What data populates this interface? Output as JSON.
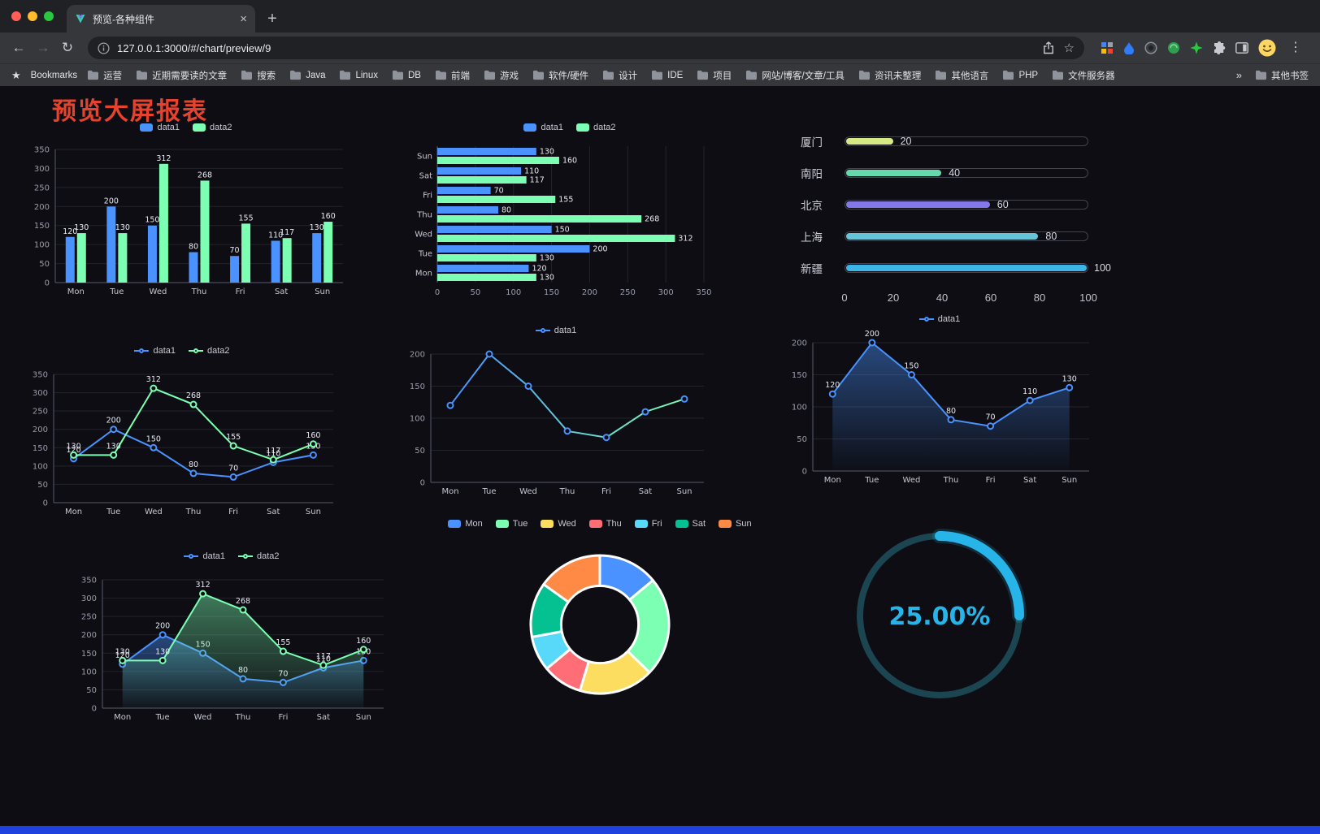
{
  "browser": {
    "tab_title": "预览-各种组件",
    "url": "127.0.0.1:3000/#/chart/preview/9",
    "bookmarks_label": "Bookmarks",
    "bookmarks": [
      "运营",
      "近期需要读的文章",
      "搜索",
      "Java",
      "Linux",
      "DB",
      "前端",
      "游戏",
      "软件/硬件",
      "设计",
      "IDE",
      "项目",
      "网站/博客/文章/工具",
      "资讯未整理",
      "其他语言",
      "PHP",
      "文件服务器"
    ],
    "overflow": "»",
    "other_bookmarks": "其他书签"
  },
  "page": {
    "title": "预览大屏报表",
    "title_color": "#e5432e",
    "background": "#0d0d13",
    "footer_color": "#1f41e0"
  },
  "chart_data": [
    {
      "id": "bar1",
      "type": "bar",
      "categories": [
        "Mon",
        "Tue",
        "Wed",
        "Thu",
        "Fri",
        "Sat",
        "Sun"
      ],
      "series": [
        {
          "name": "data1",
          "color": "#4992ff",
          "values": [
            120,
            200,
            150,
            80,
            70,
            110,
            130
          ]
        },
        {
          "name": "data2",
          "color": "#7cffb2",
          "values": [
            130,
            130,
            312,
            268,
            155,
            117,
            160
          ]
        }
      ],
      "ylim": [
        0,
        350
      ],
      "tick": 50,
      "legend_position": "top",
      "grid": true
    },
    {
      "id": "hbar1",
      "type": "hbar",
      "categories": [
        "Mon",
        "Tue",
        "Wed",
        "Thu",
        "Fri",
        "Sat",
        "Sun"
      ],
      "series": [
        {
          "name": "data1",
          "color": "#4992ff",
          "values": [
            120,
            200,
            150,
            80,
            70,
            110,
            130
          ]
        },
        {
          "name": "data2",
          "color": "#7cffb2",
          "values": [
            130,
            130,
            312,
            268,
            155,
            117,
            160
          ]
        }
      ],
      "xlim": [
        0,
        350
      ],
      "tick": 50,
      "legend_position": "top",
      "grid": true
    },
    {
      "id": "prog1",
      "type": "progress",
      "max": 100,
      "axis": [
        0,
        20,
        40,
        60,
        80,
        100
      ],
      "rows": [
        {
          "label": "厦门",
          "value": 20,
          "color": "#d5e985"
        },
        {
          "label": "南阳",
          "value": 40,
          "color": "#66d8ae"
        },
        {
          "label": "北京",
          "value": 60,
          "color": "#8478e8"
        },
        {
          "label": "上海",
          "value": 80,
          "color": "#64c5d9"
        },
        {
          "label": "新疆",
          "value": 100,
          "color": "#3cb4e7"
        }
      ]
    },
    {
      "id": "line2",
      "type": "line",
      "categories": [
        "Mon",
        "Tue",
        "Wed",
        "Thu",
        "Fri",
        "Sat",
        "Sun"
      ],
      "series": [
        {
          "name": "data1",
          "color": "#4992ff",
          "values": [
            120,
            200,
            150,
            80,
            70,
            110,
            130
          ]
        },
        {
          "name": "data2",
          "color": "#7cffb2",
          "values": [
            130,
            130,
            312,
            268,
            155,
            117,
            160
          ]
        }
      ],
      "ylim": [
        0,
        350
      ],
      "tick": 50,
      "labels": true
    },
    {
      "id": "line1",
      "type": "line",
      "categories": [
        "Mon",
        "Tue",
        "Wed",
        "Thu",
        "Fri",
        "Sat",
        "Sun"
      ],
      "series": [
        {
          "name": "data1",
          "color": "#4992ff",
          "gradient": [
            "#4992ff",
            "#7cffb2"
          ],
          "values": [
            120,
            200,
            150,
            80,
            70,
            110,
            130
          ]
        }
      ],
      "ylim": [
        0,
        200
      ],
      "tick": 50,
      "labels": false
    },
    {
      "id": "area1",
      "type": "line",
      "area": true,
      "categories": [
        "Mon",
        "Tue",
        "Wed",
        "Thu",
        "Fri",
        "Sat",
        "Sun"
      ],
      "series": [
        {
          "name": "data1",
          "color": "#4992ff",
          "values": [
            120,
            200,
            150,
            80,
            70,
            110,
            130
          ]
        }
      ],
      "ylim": [
        0,
        200
      ],
      "tick": 50,
      "labels": true
    },
    {
      "id": "area2",
      "type": "line",
      "area": true,
      "categories": [
        "Mon",
        "Tue",
        "Wed",
        "Thu",
        "Fri",
        "Sat",
        "Sun"
      ],
      "series": [
        {
          "name": "data1",
          "color": "#4992ff",
          "values": [
            120,
            200,
            150,
            80,
            70,
            110,
            130
          ]
        },
        {
          "name": "data2",
          "color": "#7cffb2",
          "values": [
            130,
            130,
            312,
            268,
            155,
            117,
            160
          ]
        }
      ],
      "ylim": [
        0,
        350
      ],
      "tick": 50,
      "labels": true
    },
    {
      "id": "pie1",
      "type": "pie",
      "labels": [
        "Mon",
        "Tue",
        "Wed",
        "Thu",
        "Fri",
        "Sat",
        "Sun"
      ],
      "values": [
        120,
        200,
        150,
        80,
        70,
        110,
        130
      ],
      "colors": [
        "#4992ff",
        "#7cffb2",
        "#fddd60",
        "#ff6e76",
        "#58d9f9",
        "#05c091",
        "#ff8a45"
      ],
      "legend_position": "top"
    },
    {
      "id": "gauge1",
      "type": "gauge",
      "value": 25,
      "display": "25.00%",
      "color": "#27b5e9",
      "track_color": "#1c4552"
    }
  ]
}
